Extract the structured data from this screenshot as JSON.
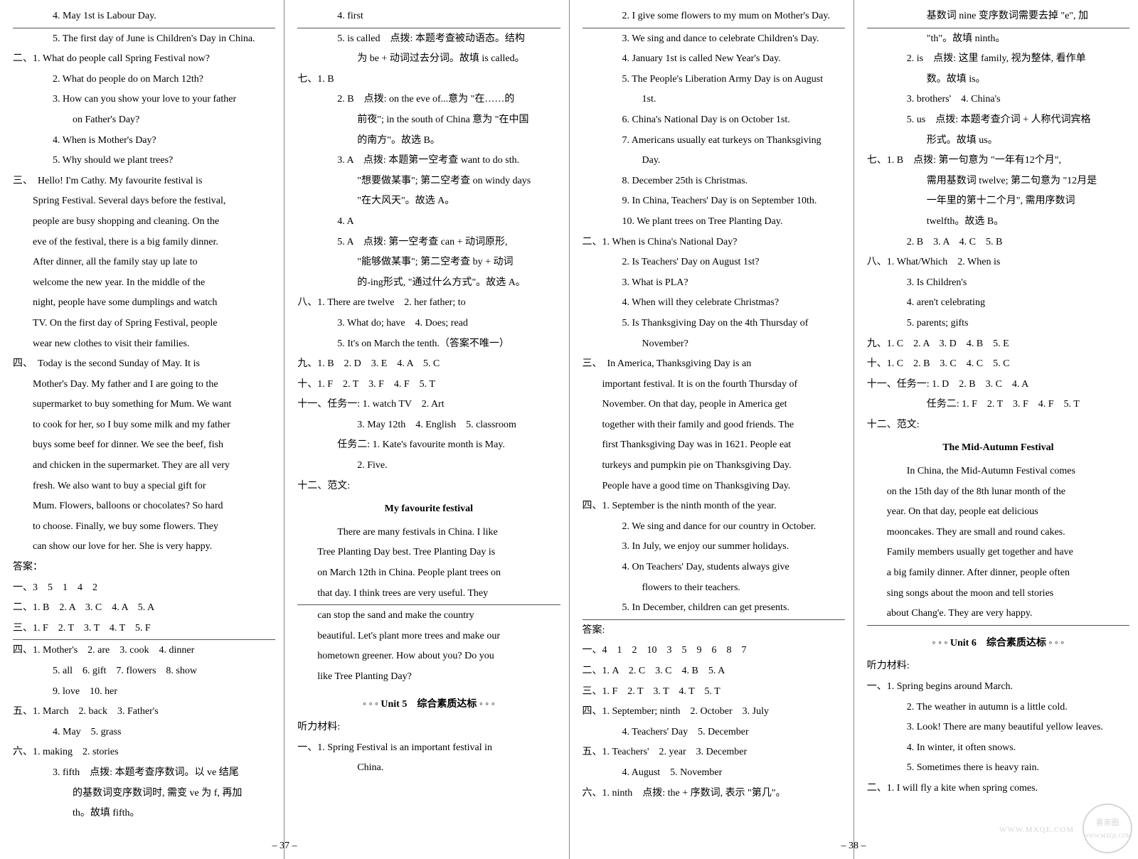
{
  "col1": {
    "lines": [
      {
        "cls": "indent-2",
        "t": "4. May 1st is Labour Day."
      },
      {
        "cls": "",
        "rule": true
      },
      {
        "cls": "indent-2",
        "t": "5. The first day of June is Children's Day in China."
      },
      {
        "cls": "",
        "t": "二、1. What do people call Spring Festival now?"
      },
      {
        "cls": "indent-2",
        "t": "2. What do people do on March 12th?"
      },
      {
        "cls": "indent-2",
        "t": "3. How can you show your love to your father"
      },
      {
        "cls": "indent-3",
        "t": "on Father's Day?"
      },
      {
        "cls": "indent-2",
        "t": "4. When is Mother's Day?"
      },
      {
        "cls": "indent-2",
        "t": "5. Why should we plant trees?"
      },
      {
        "cls": "",
        "t": "三、　Hello! I'm Cathy. My favourite festival is"
      },
      {
        "cls": "indent-1 body-text",
        "t": "Spring Festival. Several days before the festival,"
      },
      {
        "cls": "indent-1 body-text",
        "t": "people are busy shopping and cleaning. On the"
      },
      {
        "cls": "indent-1 body-text",
        "t": "eve of the festival, there is a big family dinner."
      },
      {
        "cls": "indent-1 body-text",
        "t": "After dinner, all the family stay up late to"
      },
      {
        "cls": "indent-1 body-text",
        "t": "welcome the new year. In the middle of the"
      },
      {
        "cls": "indent-1 body-text",
        "t": "night, people have some dumplings and watch"
      },
      {
        "cls": "indent-1 body-text",
        "t": "TV. On the first day of Spring Festival, people"
      },
      {
        "cls": "indent-1 body-text",
        "t": "wear new clothes to visit their families."
      },
      {
        "cls": "",
        "t": "四、　Today is the second Sunday of May. It is"
      },
      {
        "cls": "indent-1 body-text",
        "t": "Mother's Day. My father and I are going to the"
      },
      {
        "cls": "indent-1 body-text",
        "t": "supermarket to buy something for Mum. We want"
      },
      {
        "cls": "indent-1 body-text",
        "t": "to cook for her, so I buy some milk and my father"
      },
      {
        "cls": "indent-1 body-text",
        "t": "buys some beef for dinner. We see the beef, fish"
      },
      {
        "cls": "indent-1 body-text",
        "t": "and chicken in the supermarket. They are all very"
      },
      {
        "cls": "indent-1 body-text",
        "t": "fresh. We also want to buy a special gift for"
      },
      {
        "cls": "indent-1 body-text",
        "t": "Mum. Flowers, balloons or chocolates? So hard"
      },
      {
        "cls": "indent-1 body-text",
        "t": "to choose. Finally, we buy some flowers. They"
      },
      {
        "cls": "indent-1 body-text",
        "t": "can show our love for her. She is very happy."
      },
      {
        "cls": "",
        "t": "答案："
      },
      {
        "cls": "",
        "t": "一、3　5　1　4　2"
      },
      {
        "cls": "",
        "t": "二、1. B　2. A　3. C　4. A　5. A"
      },
      {
        "cls": "",
        "t": "三、1. F　2. T　3. T　4. T　5. F"
      },
      {
        "cls": "",
        "rule": true
      },
      {
        "cls": "",
        "t": "四、1. Mother's　2. are　3. cook　4. dinner"
      },
      {
        "cls": "indent-2",
        "t": "5. all　6. gift　7. flowers　8. show"
      },
      {
        "cls": "indent-2",
        "t": "9. love　10. her"
      },
      {
        "cls": "",
        "t": "五、1. March　2. back　3. Father's"
      },
      {
        "cls": "indent-2",
        "t": "4. May　5. grass"
      },
      {
        "cls": "",
        "t": "六、1. making　2. stories"
      },
      {
        "cls": "indent-2",
        "t": "3. fifth　点拨: 本题考查序数词。以 ve 结尾"
      },
      {
        "cls": "indent-3",
        "t": "的基数词变序数词时, 需变 ve 为 f, 再加"
      },
      {
        "cls": "indent-3",
        "t": "th。故填 fifth。"
      }
    ]
  },
  "col2": {
    "lines": [
      {
        "cls": "indent-2",
        "t": "4. first"
      },
      {
        "cls": "",
        "rule": true
      },
      {
        "cls": "indent-2",
        "t": "5. is called　点拨: 本题考查被动语态。结构"
      },
      {
        "cls": "indent-3",
        "t": "为 be + 动词过去分词。故填 is called。"
      },
      {
        "cls": "",
        "t": "七、1. B"
      },
      {
        "cls": "indent-2",
        "t": "2. B　点拨: on the eve of...意为 \"在……的"
      },
      {
        "cls": "indent-3",
        "t": "前夜\"; in the south of China 意为 \"在中国"
      },
      {
        "cls": "indent-3",
        "t": "的南方\"。故选 B。"
      },
      {
        "cls": "indent-2",
        "t": "3. A　点拨: 本题第一空考查 want to do sth."
      },
      {
        "cls": "indent-3",
        "t": "\"想要做某事\"; 第二空考查 on windy days"
      },
      {
        "cls": "indent-3",
        "t": "\"在大风天\"。故选 A。"
      },
      {
        "cls": "indent-2",
        "t": "4. A"
      },
      {
        "cls": "indent-2",
        "t": "5. A　点拨: 第一空考查 can + 动词原形,"
      },
      {
        "cls": "indent-3",
        "t": "\"能够做某事\"; 第二空考查 by + 动词"
      },
      {
        "cls": "indent-3",
        "t": "的-ing形式, \"通过什么方式\"。故选 A。"
      },
      {
        "cls": "",
        "t": "八、1. There are twelve　2. her father; to"
      },
      {
        "cls": "indent-2",
        "t": "3. What do; have　4. Does; read"
      },
      {
        "cls": "indent-2",
        "t": "5. It's on March the tenth.（答案不唯一）"
      },
      {
        "cls": "",
        "t": "九、1. B　2. D　3. E　4. A　5. C"
      },
      {
        "cls": "",
        "t": "十、1. F　2. T　3. F　4. F　5. T"
      },
      {
        "cls": "",
        "t": "十一、任务一: 1. watch TV　2. Art"
      },
      {
        "cls": "indent-3",
        "t": "3. May 12th　4. English　5. classroom"
      },
      {
        "cls": "indent-2",
        "t": "任务二: 1. Kate's favourite month is May."
      },
      {
        "cls": "indent-3",
        "t": "2. Five."
      },
      {
        "cls": "",
        "t": "十二、范文:"
      },
      {
        "cls": "essay-title",
        "t": "My favourite festival"
      },
      {
        "cls": "indent-2 body-text",
        "t": "There are many festivals in China. I like"
      },
      {
        "cls": "indent-1 body-text",
        "t": "Tree Planting Day best. Tree Planting Day is"
      },
      {
        "cls": "indent-1 body-text",
        "t": "on March 12th in China. People plant trees on"
      },
      {
        "cls": "indent-1 body-text",
        "t": "that day. I think trees are very useful. They"
      },
      {
        "cls": "",
        "rule": true
      },
      {
        "cls": "indent-1 body-text",
        "t": "can stop the sand and make the country"
      },
      {
        "cls": "indent-1 body-text",
        "t": "beautiful. Let's plant more trees and make our"
      },
      {
        "cls": "indent-1 body-text",
        "t": "hometown greener. How about you? Do you"
      },
      {
        "cls": "indent-1 body-text",
        "t": "like Tree Planting Day?"
      },
      {
        "cls": "unit-title",
        "t": "◦ ◦ ◦ Unit 5　综合素质达标 ◦ ◦ ◦"
      },
      {
        "cls": "",
        "t": "听力材料:"
      },
      {
        "cls": "",
        "t": "一、1. Spring Festival is an important festival in"
      },
      {
        "cls": "indent-3",
        "t": "China."
      }
    ]
  },
  "col3": {
    "lines": [
      {
        "cls": "indent-2",
        "t": "2. I give some flowers to my mum on Mother's Day."
      },
      {
        "cls": "",
        "rule": true
      },
      {
        "cls": "indent-2",
        "t": "3. We sing and dance to celebrate Children's Day."
      },
      {
        "cls": "indent-2",
        "t": "4. January 1st is called New Year's Day."
      },
      {
        "cls": "indent-2",
        "t": "5. The People's Liberation Army Day is on August"
      },
      {
        "cls": "indent-3",
        "t": "1st."
      },
      {
        "cls": "indent-2",
        "t": "6. China's National Day is on October 1st."
      },
      {
        "cls": "indent-2",
        "t": "7. Americans usually eat turkeys on Thanksgiving"
      },
      {
        "cls": "indent-3",
        "t": "Day."
      },
      {
        "cls": "indent-2",
        "t": "8. December 25th is Christmas."
      },
      {
        "cls": "indent-2",
        "t": "9. In China, Teachers' Day is on September 10th."
      },
      {
        "cls": "indent-2",
        "t": "10. We plant trees on Tree Planting Day."
      },
      {
        "cls": "",
        "t": "二、1. When is China's National Day?"
      },
      {
        "cls": "indent-2",
        "t": "2. Is Teachers' Day on August 1st?"
      },
      {
        "cls": "indent-2",
        "t": "3. What is PLA?"
      },
      {
        "cls": "indent-2",
        "t": "4. When will they celebrate Christmas?"
      },
      {
        "cls": "indent-2",
        "t": "5. Is Thanksgiving Day on the 4th Thursday of"
      },
      {
        "cls": "indent-3",
        "t": "November?"
      },
      {
        "cls": "",
        "t": "三、　In America, Thanksgiving Day is an"
      },
      {
        "cls": "indent-1 body-text",
        "t": "important festival. It is on the fourth Thursday of"
      },
      {
        "cls": "indent-1 body-text",
        "t": "November. On that day, people in America get"
      },
      {
        "cls": "indent-1 body-text",
        "t": "together with their family and good friends. The"
      },
      {
        "cls": "indent-1 body-text",
        "t": "first Thanksgiving Day was in 1621. People eat"
      },
      {
        "cls": "indent-1 body-text",
        "t": "turkeys and pumpkin pie on Thanksgiving Day."
      },
      {
        "cls": "indent-1 body-text",
        "t": "People have a good time on Thanksgiving Day."
      },
      {
        "cls": "",
        "t": "四、1. September is the ninth month of the year."
      },
      {
        "cls": "indent-2",
        "t": "2. We sing and dance for our country in October."
      },
      {
        "cls": "indent-2",
        "t": "3. In July, we enjoy our summer holidays."
      },
      {
        "cls": "indent-2",
        "t": "4. On Teachers' Day, students always give"
      },
      {
        "cls": "indent-3",
        "t": "flowers to their teachers."
      },
      {
        "cls": "indent-2",
        "t": "5. In December, children can get presents."
      },
      {
        "cls": "",
        "rule": true
      },
      {
        "cls": "",
        "t": "答案:"
      },
      {
        "cls": "",
        "t": "一、4　1　2　10　3　5　9　6　8　7"
      },
      {
        "cls": "",
        "t": "二、1. A　2. C　3. C　4. B　5. A"
      },
      {
        "cls": "",
        "t": "三、1. F　2. T　3. T　4. T　5. T"
      },
      {
        "cls": "",
        "t": "四、1. September; ninth　2. October　3. July"
      },
      {
        "cls": "indent-2",
        "t": "4. Teachers' Day　5. December"
      },
      {
        "cls": "",
        "t": "五、1. Teachers'　2. year　3. December"
      },
      {
        "cls": "indent-2",
        "t": "4. August　5. November"
      },
      {
        "cls": "",
        "t": "六、1. ninth　点拨: the + 序数词, 表示 \"第几\"。"
      }
    ]
  },
  "col4": {
    "lines": [
      {
        "cls": "indent-3",
        "t": "基数词 nine 变序数词需要去掉 \"e\", 加"
      },
      {
        "cls": "",
        "rule": true
      },
      {
        "cls": "indent-3",
        "t": "\"th\"。故填 ninth。"
      },
      {
        "cls": "indent-2",
        "t": "2. is　点拨: 这里 family, 视为整体, 看作单"
      },
      {
        "cls": "indent-3",
        "t": "数。故填 is。"
      },
      {
        "cls": "indent-2",
        "t": "3. brothers'　4. China's"
      },
      {
        "cls": "indent-2",
        "t": "5. us　点拨: 本题考查介词 + 人称代词宾格"
      },
      {
        "cls": "indent-3",
        "t": "形式。故填 us。"
      },
      {
        "cls": "",
        "t": "七、1. B　点拨: 第一句意为 \"一年有12个月\","
      },
      {
        "cls": "indent-3",
        "t": "需用基数词 twelve; 第二句意为 \"12月是"
      },
      {
        "cls": "indent-3",
        "t": "一年里的第十二个月\", 需用序数词"
      },
      {
        "cls": "indent-3",
        "t": "twelfth。故选 B。"
      },
      {
        "cls": "indent-2",
        "t": "2. B　3. A　4. C　5. B"
      },
      {
        "cls": "",
        "t": "八、1. What/Which　2. When is"
      },
      {
        "cls": "indent-2",
        "t": "3. Is Children's"
      },
      {
        "cls": "indent-2",
        "t": "4. aren't celebrating"
      },
      {
        "cls": "indent-2",
        "t": "5. parents; gifts"
      },
      {
        "cls": "",
        "t": "九、1. C　2. A　3. D　4. B　5. E"
      },
      {
        "cls": "",
        "t": "十、1. C　2. B　3. C　4. C　5. C"
      },
      {
        "cls": "",
        "t": "十一、任务一: 1. D　2. B　3. C　4. A"
      },
      {
        "cls": "indent-3",
        "t": "任务二: 1. F　2. T　3. F　4. F　5. T"
      },
      {
        "cls": "",
        "t": "十二、范文:"
      },
      {
        "cls": "essay-title",
        "t": "The Mid-Autumn Festival"
      },
      {
        "cls": "indent-2 body-text",
        "t": "In China, the Mid-Autumn Festival comes"
      },
      {
        "cls": "indent-1 body-text",
        "t": "on the 15th day of the 8th lunar month of the"
      },
      {
        "cls": "indent-1 body-text",
        "t": "year. On that day, people eat delicious"
      },
      {
        "cls": "indent-1 body-text",
        "t": "mooncakes. They are small and round cakes."
      },
      {
        "cls": "indent-1 body-text",
        "t": "Family members usually get together and have"
      },
      {
        "cls": "indent-1 body-text",
        "t": "a big family dinner. After dinner, people often"
      },
      {
        "cls": "indent-1 body-text",
        "t": "sing songs about the moon and tell stories"
      },
      {
        "cls": "indent-1 body-text",
        "t": "about Chang'e. They are very happy."
      },
      {
        "cls": "",
        "rule": true
      },
      {
        "cls": "unit-title",
        "t": "◦ ◦ ◦ Unit 6　综合素质达标 ◦ ◦ ◦"
      },
      {
        "cls": "",
        "t": "听力材料:"
      },
      {
        "cls": "",
        "t": "一、1. Spring begins around March."
      },
      {
        "cls": "indent-2",
        "t": "2. The weather in autumn is a little cold."
      },
      {
        "cls": "indent-2",
        "t": "3. Look! There are many beautiful yellow leaves."
      },
      {
        "cls": "indent-2",
        "t": "4. In winter, it often snows."
      },
      {
        "cls": "indent-2",
        "t": "5. Sometimes there is heavy rain."
      },
      {
        "cls": "",
        "t": "二、1. I will fly a kite when spring comes."
      }
    ]
  },
  "pageLeft": "– 37 –",
  "pageRight": "– 38 –",
  "watermark_top": "喜亲圈",
  "watermark_url": "WWW.MXQE.COM"
}
